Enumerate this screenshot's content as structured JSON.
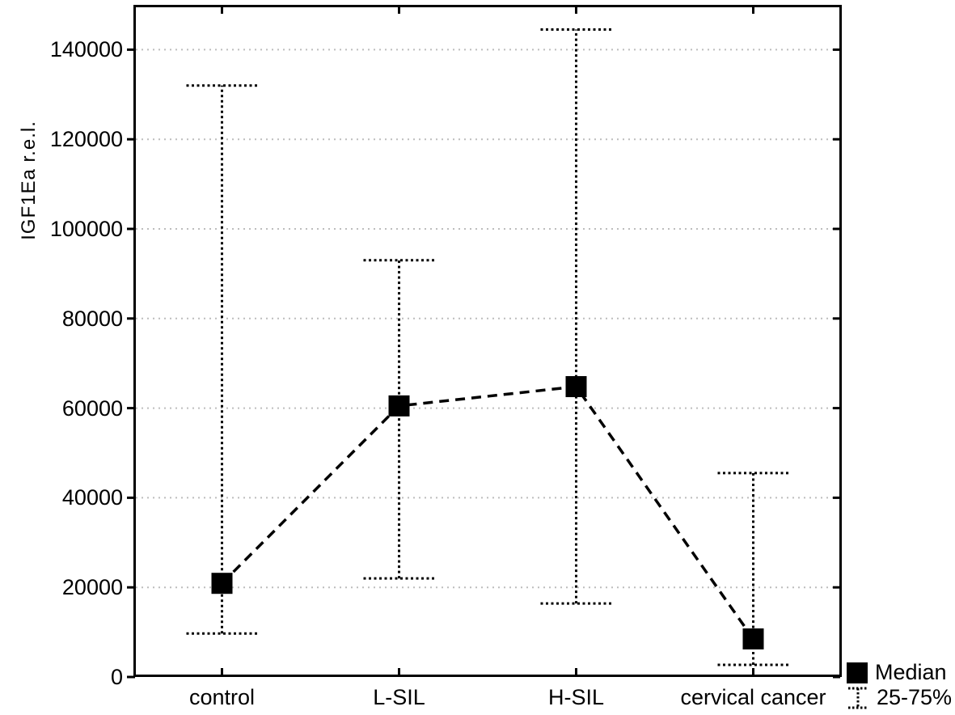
{
  "colors": {
    "foreground": "#000000",
    "background": "#ffffff",
    "grid": "#bdbdbd"
  },
  "legend": {
    "items": [
      {
        "icon": "median-square-icon",
        "label": "Median"
      },
      {
        "icon": "whisker-ibeam-icon",
        "label": "25-75%"
      }
    ]
  },
  "chart_data": {
    "type": "line",
    "subtype": "median-points-with-25-75-percentile-whiskers",
    "title": "",
    "xlabel": "",
    "ylabel": "IGF1Ea r.e.l.",
    "categories": [
      "control",
      "L-SIL",
      "H-SIL",
      "cervical cancer"
    ],
    "series": [
      {
        "name": "Median",
        "marker": "filled-black-square",
        "values": [
          20900,
          60500,
          64800,
          8500
        ]
      },
      {
        "name": "25th percentile (whisker low)",
        "values": [
          9700,
          22000,
          16400,
          2700
        ]
      },
      {
        "name": "75th percentile (whisker high)",
        "values": [
          132000,
          93000,
          144500,
          45500
        ]
      }
    ],
    "ylim": [
      0,
      150000
    ],
    "yticks": [
      0,
      20000,
      40000,
      60000,
      80000,
      100000,
      120000,
      140000
    ],
    "grid": "horizontal dotted light-gray at every y tick",
    "line_style": "black dashed line connecting medians",
    "whisker_style": "black dotted vertical line with dotted horizontal caps",
    "legend_position": "bottom-right outside plot area"
  }
}
